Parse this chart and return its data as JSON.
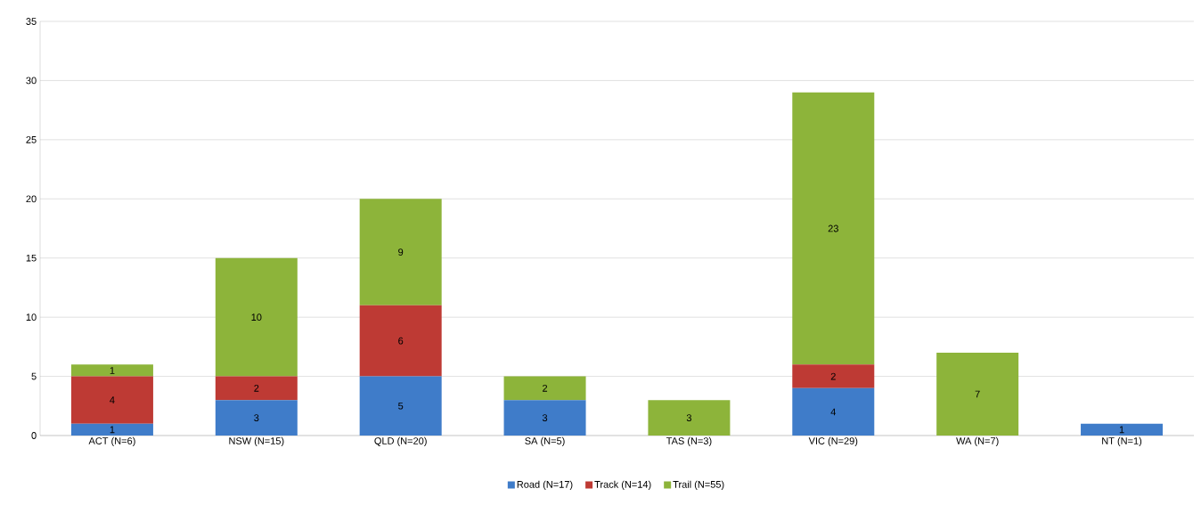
{
  "chart_data": {
    "type": "bar",
    "stacked": true,
    "categories": [
      "ACT (N=6)",
      "NSW (N=15)",
      "QLD (N=20)",
      "SA (N=5)",
      "TAS (N=3)",
      "VIC (N=29)",
      "WA (N=7)",
      "NT (N=1)"
    ],
    "series": [
      {
        "name": "Road (N=17)",
        "color": "#3f7cc9",
        "values": [
          1,
          3,
          5,
          3,
          null,
          4,
          null,
          1
        ]
      },
      {
        "name": "Track (N=14)",
        "color": "#be3a34",
        "values": [
          4,
          2,
          6,
          null,
          null,
          2,
          null,
          null
        ]
      },
      {
        "name": "Trail (N=55)",
        "color": "#8db43a",
        "values": [
          1,
          10,
          9,
          2,
          3,
          23,
          7,
          null
        ]
      }
    ],
    "ylim": [
      0,
      35
    ],
    "yticks": [
      0,
      5,
      10,
      15,
      20,
      25,
      30,
      35
    ],
    "grid": "y",
    "legend": "bottom",
    "data_labels": true
  }
}
